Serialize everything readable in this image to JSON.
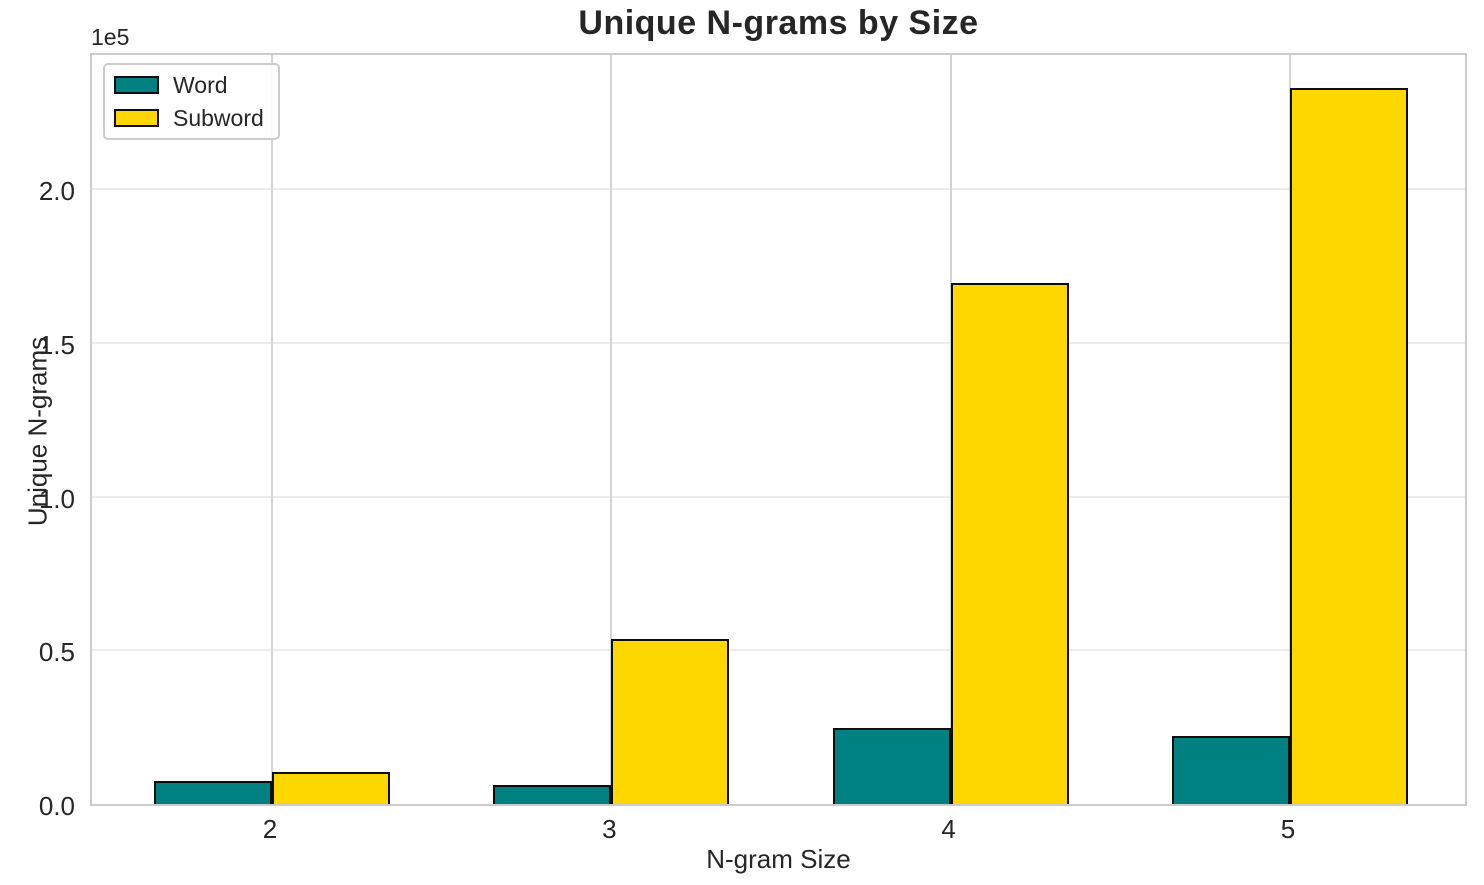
{
  "figure": {
    "title": "Unique N-grams by Size",
    "xlabel": "N-gram Size",
    "ylabel": "Unique N-grams",
    "offset_text": "1e5"
  },
  "legend": {
    "items": [
      {
        "label": "Word",
        "color": "#008080"
      },
      {
        "label": "Subword",
        "color": "#FFD700"
      }
    ]
  },
  "axes": {
    "y_ticks": [
      {
        "label": "0.0",
        "value": 0
      },
      {
        "label": "0.5",
        "value": 50000
      },
      {
        "label": "1.0",
        "value": 100000
      },
      {
        "label": "1.5",
        "value": 150000
      },
      {
        "label": "2.0",
        "value": 200000
      }
    ],
    "x_ticks": [
      "2",
      "3",
      "4",
      "5"
    ]
  },
  "chart_data": {
    "type": "bar",
    "title": "Unique N-grams by Size",
    "xlabel": "N-gram Size",
    "ylabel": "Unique N-grams",
    "categories": [
      "2",
      "3",
      "4",
      "5"
    ],
    "series": [
      {
        "name": "Word",
        "color": "#008080",
        "values": [
          7400,
          6100,
          24600,
          22000
        ]
      },
      {
        "name": "Subword",
        "color": "#FFD700",
        "values": [
          10500,
          53600,
          169500,
          232800
        ]
      }
    ],
    "ylim": [
      0,
      245000
    ],
    "y_unit_multiplier": 100000,
    "y_offset_label": "1e5",
    "grid": true,
    "legend_position": "upper left",
    "bar_edge_color": "#0d0d0d"
  }
}
